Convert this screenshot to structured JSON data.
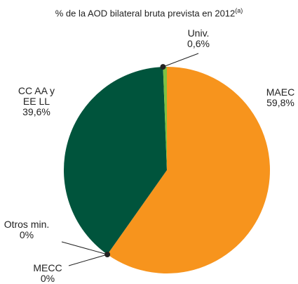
{
  "chart_data": {
    "type": "pie",
    "subtitle": "% de la AOD bilateral bruta prevista en 2012",
    "subtitle_note": "(a)",
    "categories": [
      "MAEC",
      "Otros min.",
      "MECC",
      "CC AA y EE LL",
      "Univ."
    ],
    "values": [
      59.8,
      0,
      0,
      39.6,
      0.6
    ],
    "value_labels": [
      "59,8%",
      "0%",
      "0%",
      "39,6%",
      "0,6%"
    ],
    "colors": [
      "#f7941d",
      "#8c8c8c",
      "#6d3b8e",
      "#00543c",
      "#7dc242"
    ]
  }
}
